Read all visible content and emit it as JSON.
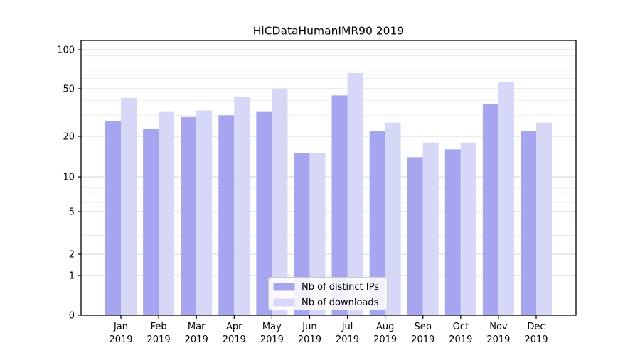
{
  "chart_data": {
    "type": "bar",
    "title": "HiCDataHumanIMR90 2019",
    "categories": [
      "Jan 2019",
      "Feb 2019",
      "Mar 2019",
      "Apr 2019",
      "May 2019",
      "Jun 2019",
      "Jul 2019",
      "Aug 2019",
      "Sep 2019",
      "Oct 2019",
      "Nov 2019",
      "Dec 2019"
    ],
    "series": [
      {
        "name": "Nb of distinct IPs",
        "color": "#a6a6f0",
        "values": [
          27,
          23,
          29,
          30,
          32,
          15,
          44,
          22,
          14,
          16,
          37,
          22
        ]
      },
      {
        "name": "Nb of downloads",
        "color": "#d7d7f8",
        "values": [
          42,
          32,
          33,
          43,
          50,
          15,
          66,
          26,
          18,
          18,
          56,
          26
        ]
      }
    ],
    "xlabel": "",
    "ylabel": "",
    "y_scale": "symlog",
    "ylim": [
      0,
      100
    ],
    "y_ticks": [
      100,
      50,
      20,
      10,
      5,
      2,
      1,
      0
    ],
    "y_minor_ticks": [
      3,
      4,
      6,
      7,
      8,
      9,
      30,
      40,
      60,
      70,
      80,
      90
    ],
    "grid": "horizontal, major and minor",
    "legend_position": "lower center",
    "colors": {
      "major_grid": "#d6d6d6",
      "minor_grid": "#ededed",
      "axis": "#000000",
      "legend_border": "#cccccc",
      "legend_background": "#ffffff"
    }
  }
}
